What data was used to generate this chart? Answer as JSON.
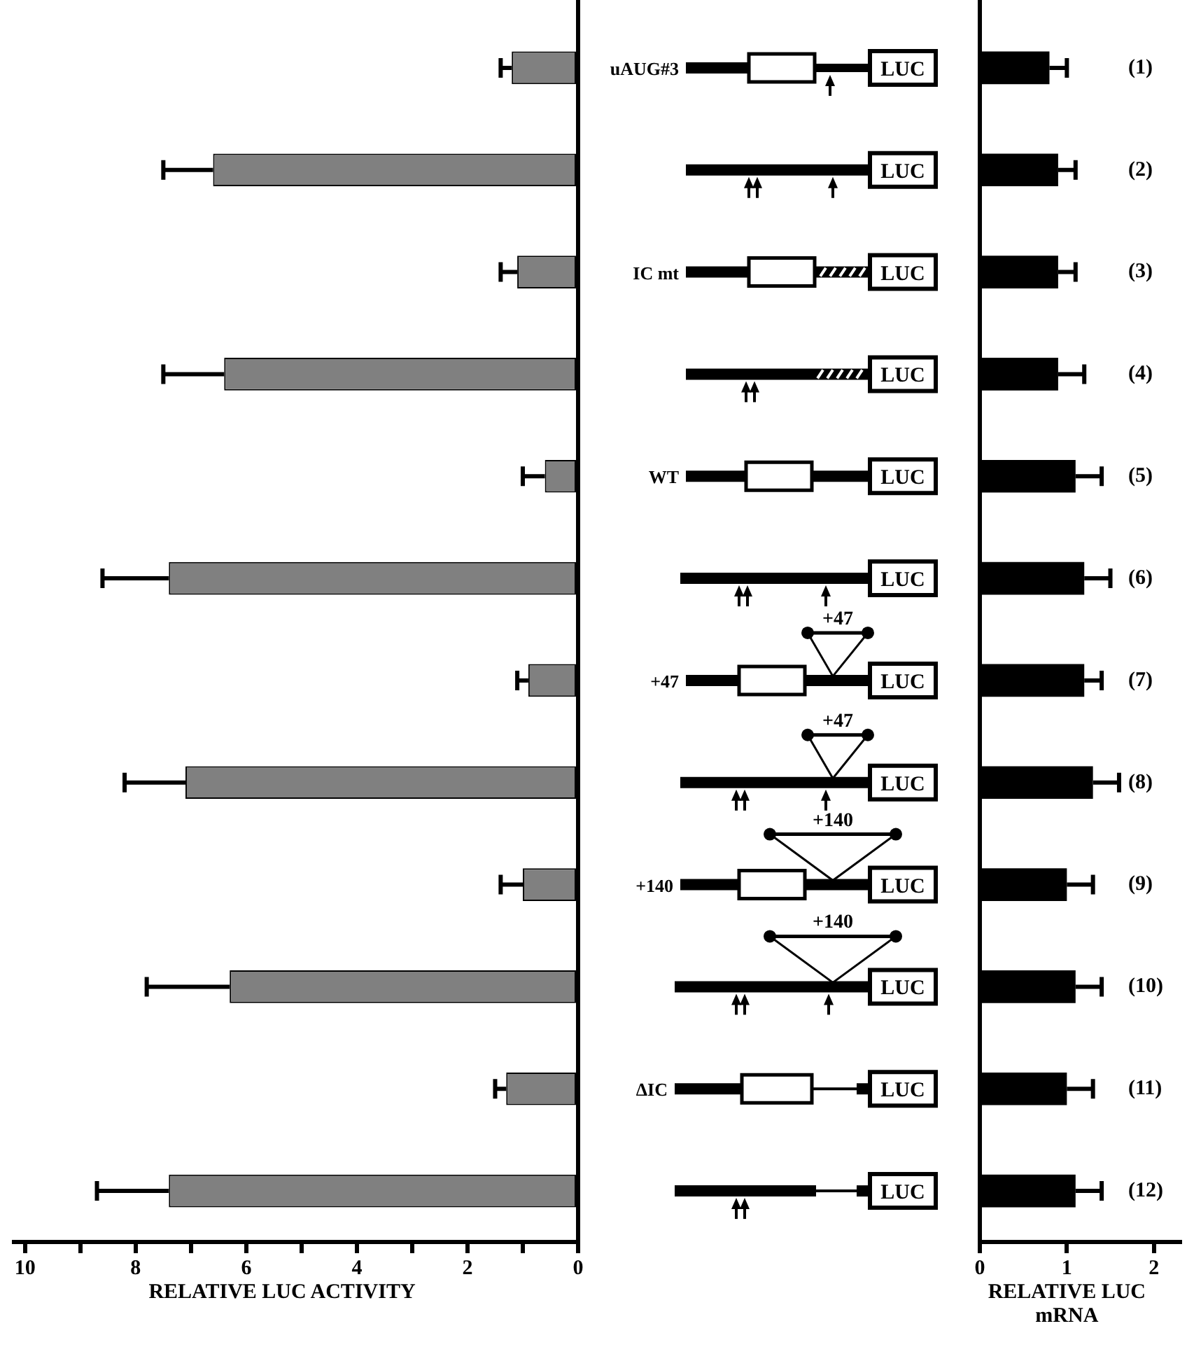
{
  "chart_data": [
    {
      "type": "bar",
      "orientation": "horizontal",
      "xlabel": "RELATIVE LUC ACTIVITY",
      "categories": [
        null,
        null,
        null,
        null,
        null,
        null,
        null,
        null,
        null,
        null,
        null,
        null
      ],
      "values": [
        1.2,
        6.6,
        1.1,
        6.4,
        0.6,
        7.4,
        0.9,
        7.1,
        1.0,
        6.3,
        1.3,
        7.4
      ],
      "errors": [
        [
          1.2,
          1.4
        ],
        [
          6.6,
          7.5
        ],
        [
          1.1,
          1.4
        ],
        [
          6.4,
          7.5
        ],
        [
          0.6,
          1.0
        ],
        [
          7.4,
          8.6
        ],
        [
          0.9,
          1.1
        ],
        [
          7.1,
          8.2
        ],
        [
          1.0,
          1.4
        ],
        [
          6.3,
          7.8
        ],
        [
          1.3,
          1.5
        ],
        [
          7.4,
          8.7
        ]
      ],
      "color": "#808080",
      "xlim": [
        10.2,
        0
      ],
      "xticks": [
        10,
        {
          "value": 9,
          "label": null
        },
        8,
        {
          "value": 7,
          "label": null
        },
        6,
        {
          "value": 5,
          "label": null
        },
        4,
        {
          "value": 3,
          "label": null
        },
        2,
        {
          "value": 1,
          "label": null
        },
        0
      ],
      "tick_labels": "x",
      "legend": false
    },
    {
      "type": "other",
      "annotations": [
        "uAUG#3",
        "LUC",
        "LUC",
        "IC mt",
        "LUC",
        "LUC",
        "WT",
        "LUC",
        "LUC",
        "+47",
        "+47",
        "LUC",
        "+47",
        "LUC",
        "+140",
        "+140",
        "LUC",
        "+140",
        "LUC",
        "ΔIC",
        "LUC",
        "LUC"
      ]
    },
    {
      "type": "bar",
      "orientation": "horizontal",
      "xlabel": "RELATIVE LUC mRNA",
      "categories": [
        "(1)",
        "(2)",
        "(3)",
        "(4)",
        "(5)",
        "(6)",
        "(7)",
        "(8)",
        "(9)",
        "(10)",
        "(11)",
        "(12)"
      ],
      "values": [
        0.8,
        0.9,
        0.9,
        0.9,
        1.1,
        1.2,
        1.2,
        1.3,
        1.0,
        1.1,
        1.0,
        1.1
      ],
      "errors": [
        [
          0.8,
          1.0
        ],
        [
          0.9,
          1.1
        ],
        [
          0.9,
          1.1
        ],
        [
          0.9,
          1.2
        ],
        [
          1.1,
          1.4
        ],
        [
          1.2,
          1.5
        ],
        [
          1.2,
          1.4
        ],
        [
          1.3,
          1.6
        ],
        [
          1.0,
          1.3
        ],
        [
          1.1,
          1.4
        ],
        [
          1.0,
          1.3
        ],
        [
          1.1,
          1.4
        ]
      ],
      "color": "#000000",
      "xlim": [
        0,
        2.3
      ],
      "xticks": [
        0,
        1,
        2
      ],
      "legend": false
    }
  ]
}
